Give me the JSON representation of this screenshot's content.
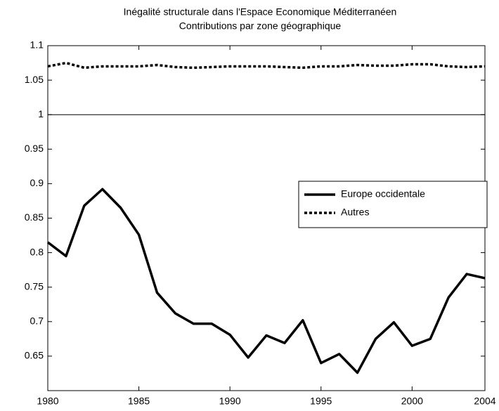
{
  "chart_data": {
    "type": "line",
    "title": "Inégalité structurale dans l'Espace Economique Méditerranéen",
    "subtitle": "Contributions par zone géographique",
    "x": [
      1980,
      1981,
      1982,
      1983,
      1984,
      1985,
      1986,
      1987,
      1988,
      1989,
      1990,
      1991,
      1992,
      1993,
      1994,
      1995,
      1996,
      1997,
      1998,
      1999,
      2000,
      2001,
      2002,
      2003,
      2004
    ],
    "series": [
      {
        "name": "Europe occidentale",
        "color": "#000000",
        "dash": "solid",
        "values": [
          0.815,
          0.795,
          0.868,
          0.892,
          0.865,
          0.826,
          0.742,
          0.712,
          0.697,
          0.697,
          0.681,
          0.648,
          0.68,
          0.669,
          0.702,
          0.64,
          0.653,
          0.626,
          0.675,
          0.699,
          0.665,
          0.675,
          0.735,
          0.769,
          0.763
        ]
      },
      {
        "name": "Autres",
        "color": "#000000",
        "dash": "dotted",
        "values": [
          1.07,
          1.075,
          1.068,
          1.07,
          1.07,
          1.07,
          1.072,
          1.069,
          1.068,
          1.069,
          1.07,
          1.07,
          1.07,
          1.069,
          1.068,
          1.07,
          1.07,
          1.072,
          1.071,
          1.071,
          1.073,
          1.073,
          1.07,
          1.069,
          1.07
        ]
      }
    ],
    "reference_line": 1,
    "xlim": [
      1980,
      2004
    ],
    "xticks": [
      1980,
      1985,
      1990,
      1995,
      2000,
      2004
    ],
    "ylim": [
      0.6,
      1.1
    ],
    "yticks": [
      0.65,
      0.7,
      0.75,
      0.8,
      0.85,
      0.9,
      0.95,
      1,
      1.05,
      1.1
    ],
    "grid": false,
    "legend": "east"
  }
}
